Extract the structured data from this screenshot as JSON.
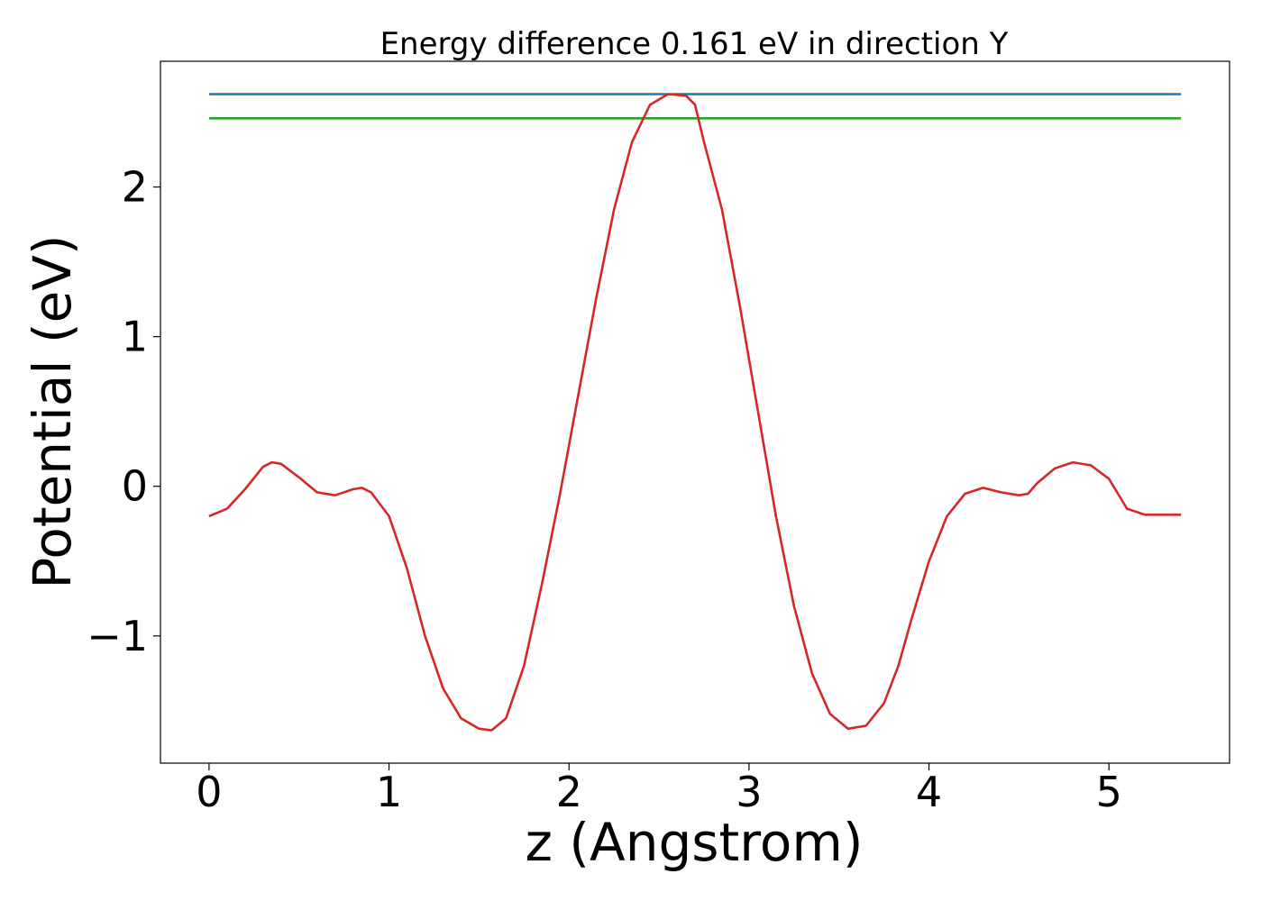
{
  "chart_data": {
    "type": "line",
    "title": "Energy difference 0.161 eV in direction Y",
    "xlabel": "z (Angstrom)",
    "ylabel": "Potential (eV)",
    "xlim": [
      -0.27,
      5.67
    ],
    "ylim": [
      -1.85,
      2.84
    ],
    "x_ticks": [
      0,
      1,
      2,
      3,
      4,
      5
    ],
    "x_tick_labels": [
      "0",
      "1",
      "2",
      "3",
      "4",
      "5"
    ],
    "y_ticks": [
      -1,
      0,
      1,
      2
    ],
    "y_tick_labels": [
      "−1",
      "0",
      "1",
      "2"
    ],
    "grid": false,
    "legend": "none",
    "series": [
      {
        "color": "#1f77b4",
        "x": [
          0.0,
          5.4
        ],
        "y": [
          2.62,
          2.62
        ]
      },
      {
        "color": "#2ca02c",
        "x": [
          0.0,
          5.4
        ],
        "y": [
          2.459,
          2.459
        ]
      },
      {
        "color": "#d62728",
        "x": [
          0.0,
          0.1,
          0.2,
          0.3,
          0.35,
          0.4,
          0.5,
          0.6,
          0.7,
          0.8,
          0.85,
          0.9,
          1.0,
          1.1,
          1.2,
          1.3,
          1.4,
          1.5,
          1.57,
          1.65,
          1.75,
          1.85,
          1.95,
          2.05,
          2.15,
          2.25,
          2.35,
          2.45,
          2.55,
          2.65,
          2.7,
          2.75,
          2.85,
          2.95,
          3.05,
          3.15,
          3.25,
          3.35,
          3.45,
          3.55,
          3.65,
          3.75,
          3.83,
          3.9,
          4.0,
          4.1,
          4.2,
          4.3,
          4.4,
          4.5,
          4.55,
          4.6,
          4.7,
          4.8,
          4.9,
          5.0,
          5.05,
          5.1,
          5.2,
          5.3,
          5.4
        ],
        "y": [
          -0.2,
          -0.15,
          -0.02,
          0.13,
          0.16,
          0.15,
          0.06,
          -0.04,
          -0.06,
          -0.02,
          -0.01,
          -0.04,
          -0.2,
          -0.55,
          -1.0,
          -1.35,
          -1.55,
          -1.62,
          -1.63,
          -1.55,
          -1.2,
          -0.65,
          -0.05,
          0.6,
          1.25,
          1.85,
          2.3,
          2.55,
          2.62,
          2.61,
          2.55,
          2.3,
          1.85,
          1.2,
          0.5,
          -0.2,
          -0.8,
          -1.25,
          -1.52,
          -1.62,
          -1.6,
          -1.45,
          -1.2,
          -0.9,
          -0.5,
          -0.2,
          -0.05,
          -0.01,
          -0.04,
          -0.06,
          -0.05,
          0.02,
          0.12,
          0.16,
          0.14,
          0.05,
          -0.05,
          -0.15,
          -0.19,
          -0.19,
          -0.19
        ]
      }
    ]
  }
}
